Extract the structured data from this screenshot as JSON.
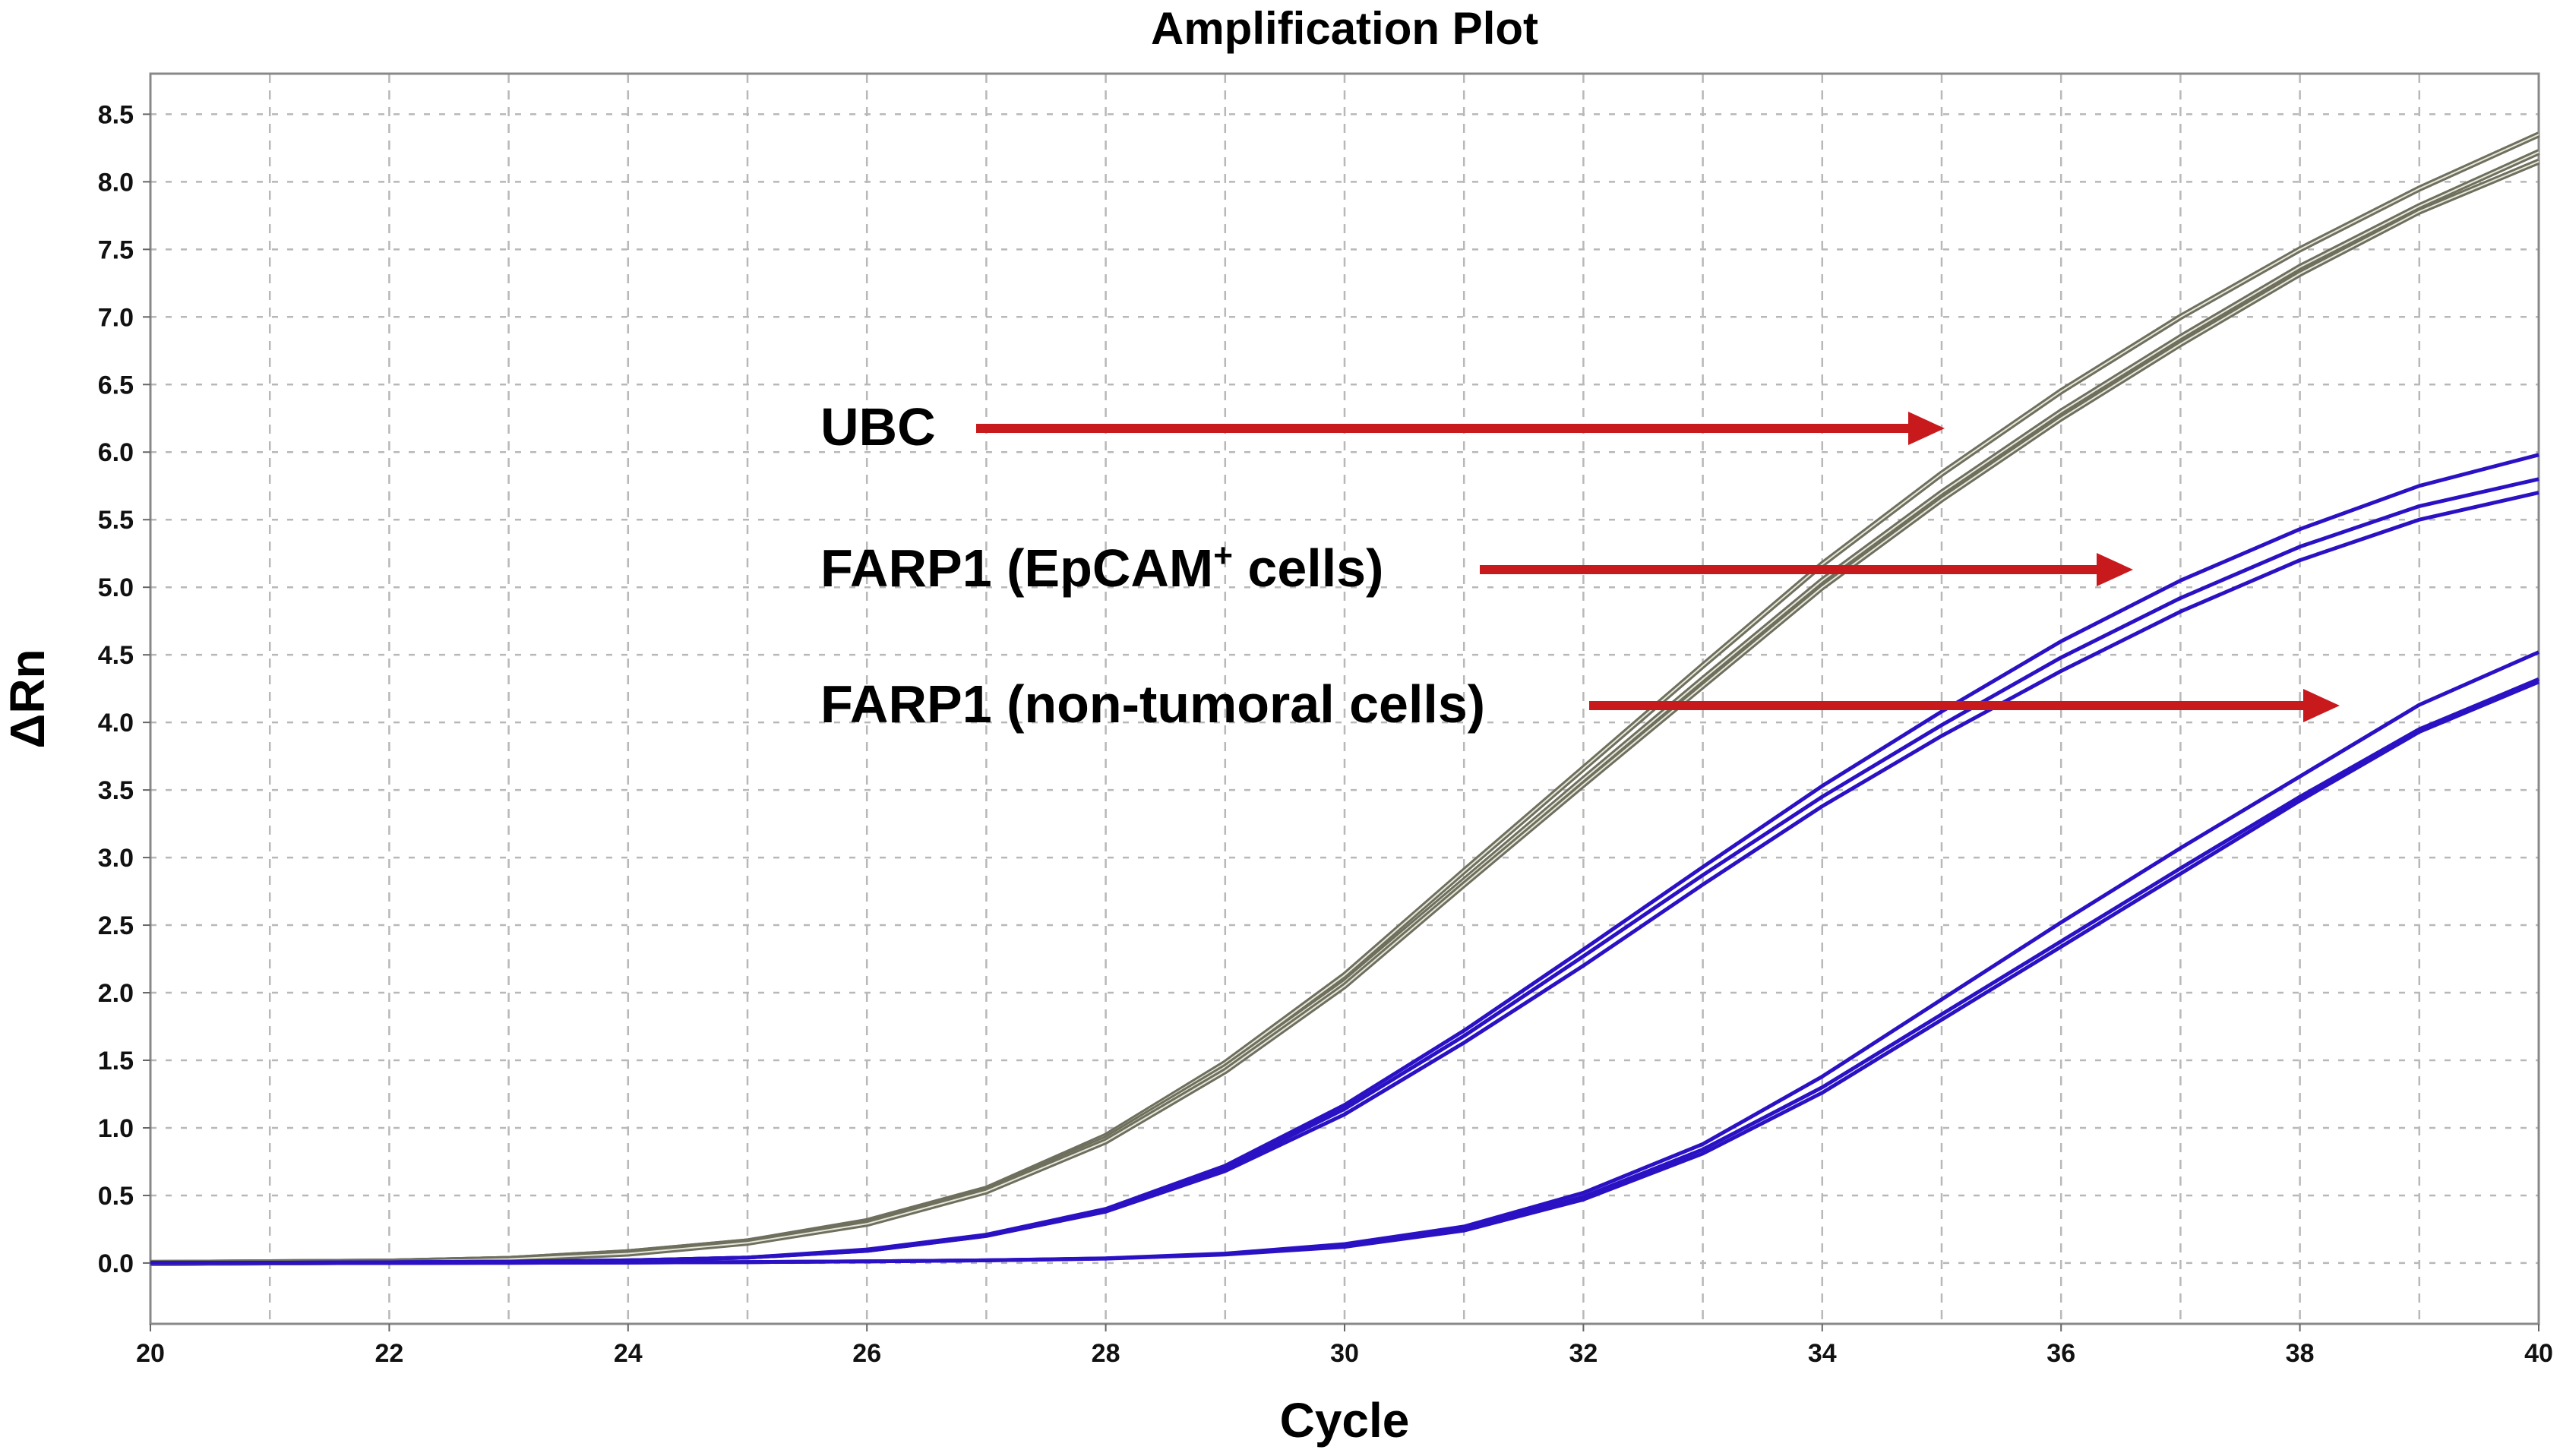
{
  "chart_data": {
    "type": "line",
    "title": "Amplification Plot",
    "xlabel": "Cycle",
    "ylabel": "ΔRn",
    "xlim": [
      20,
      40
    ],
    "ylim": [
      -0.45,
      8.8
    ],
    "xticks": [
      20,
      22,
      24,
      26,
      28,
      30,
      32,
      34,
      36,
      38,
      40
    ],
    "yticks": [
      "0.0",
      "0.5",
      "1.0",
      "1.5",
      "2.0",
      "2.5",
      "3.0",
      "3.5",
      "4.0",
      "4.5",
      "5.0",
      "5.5",
      "6.0",
      "6.5",
      "7.0",
      "7.5",
      "8.0",
      "8.5"
    ],
    "grid": true,
    "x": [
      20,
      21,
      22,
      23,
      24,
      25,
      26,
      27,
      28,
      29,
      30,
      31,
      32,
      33,
      34,
      35,
      36,
      37,
      38,
      39,
      40
    ],
    "series": [
      {
        "group": "UBC",
        "color": "#6f6f5e",
        "values": [
          0,
          0.005,
          0.01,
          0.03,
          0.08,
          0.16,
          0.31,
          0.55,
          0.94,
          1.48,
          2.13,
          2.9,
          3.66,
          4.42,
          5.17,
          5.84,
          6.45,
          7.0,
          7.5,
          7.95,
          8.35
        ]
      },
      {
        "group": "UBC",
        "color": "#6f6f5e",
        "values": [
          0,
          0.005,
          0.01,
          0.03,
          0.08,
          0.16,
          0.3,
          0.54,
          0.92,
          1.45,
          2.08,
          2.83,
          3.58,
          4.32,
          5.05,
          5.7,
          6.3,
          6.85,
          7.37,
          7.82,
          8.22
        ]
      },
      {
        "group": "UBC",
        "color": "#6f6f5e",
        "values": [
          0,
          0.005,
          0.01,
          0.03,
          0.07,
          0.15,
          0.29,
          0.53,
          0.9,
          1.42,
          2.05,
          2.8,
          3.54,
          4.27,
          5.0,
          5.65,
          6.25,
          6.8,
          7.32,
          7.78,
          8.15
        ]
      },
      {
        "group": "FARP1 (EpCAM+ cells)",
        "color": "#2a12c4",
        "values": [
          0,
          0.002,
          0.005,
          0.01,
          0.02,
          0.04,
          0.1,
          0.21,
          0.4,
          0.72,
          1.17,
          1.72,
          2.32,
          2.93,
          3.53,
          4.08,
          4.6,
          5.05,
          5.43,
          5.75,
          5.98
        ]
      },
      {
        "group": "FARP1 (EpCAM+ cells)",
        "color": "#2a12c4",
        "values": [
          0,
          0.002,
          0.005,
          0.01,
          0.02,
          0.04,
          0.09,
          0.2,
          0.39,
          0.7,
          1.14,
          1.68,
          2.27,
          2.87,
          3.45,
          3.98,
          4.48,
          4.92,
          5.3,
          5.6,
          5.8
        ]
      },
      {
        "group": "FARP1 (EpCAM+ cells)",
        "color": "#2a12c4",
        "values": [
          0,
          0.002,
          0.005,
          0.01,
          0.02,
          0.04,
          0.09,
          0.2,
          0.38,
          0.68,
          1.1,
          1.63,
          2.2,
          2.8,
          3.38,
          3.9,
          4.38,
          4.82,
          5.2,
          5.5,
          5.7
        ]
      },
      {
        "group": "FARP1 (non-tumoral cells)",
        "color": "#2a12c4",
        "values": [
          0,
          0,
          0,
          0.002,
          0.004,
          0.007,
          0.012,
          0.02,
          0.035,
          0.07,
          0.14,
          0.27,
          0.52,
          0.88,
          1.38,
          1.95,
          2.52,
          3.07,
          3.6,
          4.13,
          4.52
        ]
      },
      {
        "group": "FARP1 (non-tumoral cells)",
        "color": "#2a12c4",
        "values": [
          0,
          0,
          0,
          0.002,
          0.004,
          0.007,
          0.012,
          0.02,
          0.034,
          0.065,
          0.13,
          0.25,
          0.49,
          0.84,
          1.3,
          1.84,
          2.38,
          2.92,
          3.45,
          3.95,
          4.32
        ]
      },
      {
        "group": "FARP1 (non-tumoral cells)",
        "color": "#2a12c4",
        "values": [
          0,
          0,
          0,
          0.002,
          0.004,
          0.007,
          0.012,
          0.02,
          0.033,
          0.063,
          0.12,
          0.24,
          0.47,
          0.81,
          1.26,
          1.8,
          2.34,
          2.88,
          3.42,
          3.93,
          4.3
        ]
      }
    ],
    "annotations": [
      {
        "text": "UBC",
        "sup": "",
        "suffix": ""
      },
      {
        "text": "FARP1 (EpCAM",
        "sup": "+",
        "suffix": " cells)"
      },
      {
        "text": "FARP1 (non-tumoral cells)",
        "sup": "",
        "suffix": ""
      }
    ],
    "arrow_color": "#c81a1d"
  }
}
